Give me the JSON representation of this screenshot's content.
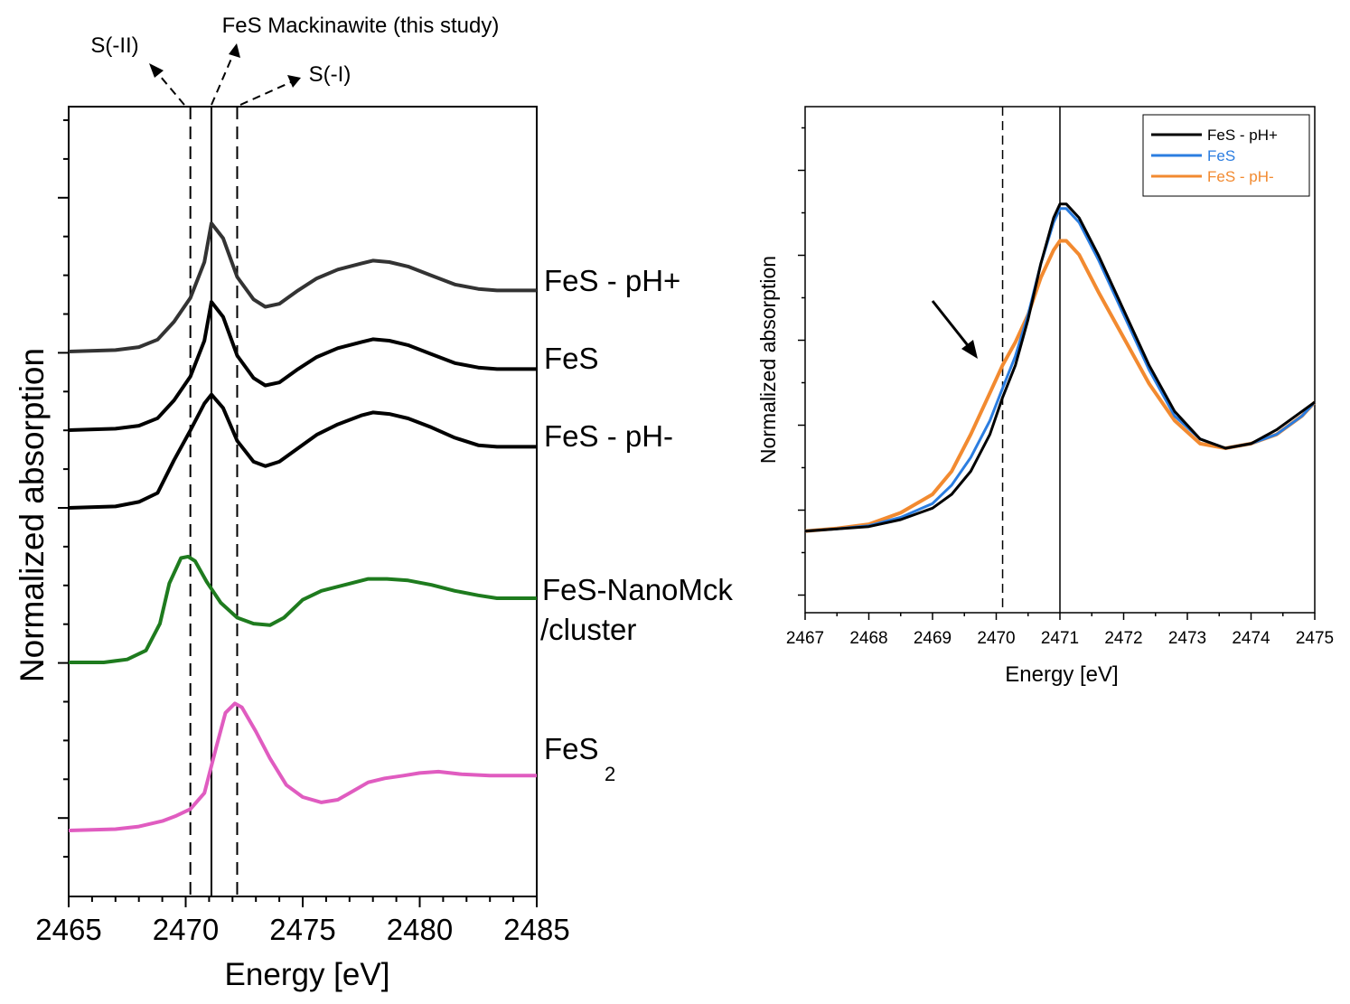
{
  "chart_data": [
    {
      "type": "line",
      "xlabel": "Energy [eV]",
      "ylabel": "Normalized absorption",
      "xlim": [
        2465,
        2485
      ],
      "xticks": [
        "2465",
        "2470",
        "2475",
        "2480",
        "2485"
      ],
      "y_tick_labels_shown": false,
      "reference_lines": [
        {
          "name": "S(-II)",
          "x": 2470.2,
          "style": "dashed"
        },
        {
          "name": "FeS Mackinawite (this study)",
          "x": 2471.1,
          "style": "solid"
        },
        {
          "name": "S(-I)",
          "x": 2472.2,
          "style": "dashed"
        }
      ],
      "series": [
        {
          "name": "FeS - pH+",
          "color": "#333333",
          "x": [
            2465,
            2467,
            2468,
            2468.8,
            2469.5,
            2470.2,
            2470.8,
            2471.1,
            2471.6,
            2472.2,
            2472.9,
            2473.4,
            2474,
            2474.8,
            2475.6,
            2476.5,
            2477.5,
            2478,
            2478.7,
            2479.5,
            2480.5,
            2481.5,
            2482.5,
            2483.3,
            2485
          ],
          "y": [
            0.1,
            0.11,
            0.13,
            0.18,
            0.3,
            0.46,
            0.7,
            0.96,
            0.86,
            0.6,
            0.45,
            0.4,
            0.42,
            0.51,
            0.59,
            0.65,
            0.69,
            0.71,
            0.7,
            0.67,
            0.61,
            0.55,
            0.52,
            0.51,
            0.51
          ]
        },
        {
          "name": "FeS",
          "color": "#000000",
          "x": [
            2465,
            2467,
            2468,
            2468.8,
            2469.5,
            2470.2,
            2470.8,
            2471.1,
            2471.6,
            2472.2,
            2472.9,
            2473.4,
            2474,
            2474.8,
            2475.6,
            2476.5,
            2477.5,
            2478,
            2478.7,
            2479.5,
            2480.5,
            2481.5,
            2482.5,
            2483.3,
            2485
          ],
          "y": [
            0.1,
            0.11,
            0.13,
            0.18,
            0.3,
            0.46,
            0.7,
            0.96,
            0.86,
            0.6,
            0.45,
            0.4,
            0.42,
            0.51,
            0.59,
            0.65,
            0.69,
            0.71,
            0.7,
            0.67,
            0.61,
            0.55,
            0.52,
            0.51,
            0.51
          ]
        },
        {
          "name": "FeS - pH-",
          "color": "#000000",
          "x": [
            2465,
            2467,
            2468,
            2468.8,
            2469.5,
            2470.2,
            2470.8,
            2471.1,
            2471.6,
            2472.2,
            2472.9,
            2473.4,
            2474,
            2474.8,
            2475.6,
            2476.5,
            2477.5,
            2478,
            2478.7,
            2479.5,
            2480.5,
            2481.5,
            2482.5,
            2483.3,
            2485
          ],
          "y": [
            0.1,
            0.11,
            0.14,
            0.2,
            0.42,
            0.62,
            0.8,
            0.86,
            0.77,
            0.55,
            0.41,
            0.38,
            0.41,
            0.5,
            0.59,
            0.66,
            0.72,
            0.74,
            0.73,
            0.7,
            0.64,
            0.57,
            0.52,
            0.51,
            0.51
          ]
        },
        {
          "name": "FeS-NanoMck /cluster",
          "color": "#1e7b1e",
          "x": [
            2465,
            2466.5,
            2467.5,
            2468.3,
            2468.9,
            2469.3,
            2469.8,
            2470.1,
            2470.4,
            2470.9,
            2471.5,
            2472.2,
            2472.9,
            2473.6,
            2474.2,
            2475,
            2475.8,
            2476.8,
            2477.8,
            2478.6,
            2479.5,
            2480.5,
            2481.5,
            2482.5,
            2483.3,
            2485
          ],
          "y": [
            0.1,
            0.1,
            0.12,
            0.18,
            0.36,
            0.63,
            0.8,
            0.81,
            0.78,
            0.64,
            0.5,
            0.4,
            0.36,
            0.35,
            0.4,
            0.52,
            0.58,
            0.62,
            0.66,
            0.66,
            0.65,
            0.62,
            0.58,
            0.55,
            0.53,
            0.53
          ]
        },
        {
          "name": "FeS2",
          "color": "#e05cc0",
          "x": [
            2465,
            2467,
            2468,
            2469,
            2469.6,
            2470.2,
            2470.8,
            2471.3,
            2471.7,
            2472.1,
            2472.4,
            2473,
            2473.6,
            2474.3,
            2475,
            2475.8,
            2476.5,
            2477.2,
            2477.8,
            2478.5,
            2479.3,
            2480,
            2480.8,
            2481.8,
            2483,
            2485
          ],
          "y": [
            0.1,
            0.11,
            0.13,
            0.17,
            0.21,
            0.26,
            0.38,
            0.72,
            0.98,
            1.05,
            1.02,
            0.84,
            0.64,
            0.44,
            0.35,
            0.31,
            0.33,
            0.4,
            0.46,
            0.49,
            0.51,
            0.53,
            0.54,
            0.52,
            0.51,
            0.51
          ]
        }
      ],
      "label_texts": {
        "fes_ph_plus": "FeS - pH+",
        "fes": "FeS",
        "fes_ph_minus": "FeS - pH-",
        "nanomck_line1": "FeS-NanoMck",
        "nanomck_line2": "/cluster",
        "fes2_base": "FeS",
        "fes2_sub": "2"
      }
    },
    {
      "type": "line",
      "xlabel": "Energy [eV]",
      "ylabel": "Normalized absorption",
      "xlim": [
        2467,
        2475
      ],
      "xticks": [
        "2467",
        "2468",
        "2469",
        "2470",
        "2471",
        "2472",
        "2473",
        "2474",
        "2475"
      ],
      "y_tick_labels_shown": false,
      "reference_lines": [
        {
          "x": 2470.1,
          "style": "dashed"
        },
        {
          "x": 2471.0,
          "style": "solid"
        }
      ],
      "annotation": "arrow pointing to the pre-edge shoulder near 2469.8 eV",
      "legend": {
        "position": "top-right"
      },
      "series": [
        {
          "name": "FeS - pH+",
          "color": "#000000",
          "x": [
            2467,
            2467.5,
            2468,
            2468.5,
            2469,
            2469.3,
            2469.6,
            2469.9,
            2470.1,
            2470.3,
            2470.5,
            2470.7,
            2470.9,
            2471,
            2471.1,
            2471.3,
            2471.6,
            2472,
            2472.4,
            2472.8,
            2473.2,
            2473.6,
            2474,
            2474.4,
            2474.8,
            2475
          ],
          "y": [
            0.12,
            0.125,
            0.13,
            0.145,
            0.17,
            0.2,
            0.25,
            0.33,
            0.41,
            0.48,
            0.58,
            0.7,
            0.8,
            0.83,
            0.83,
            0.8,
            0.72,
            0.6,
            0.48,
            0.38,
            0.32,
            0.3,
            0.31,
            0.34,
            0.38,
            0.4
          ]
        },
        {
          "name": "FeS",
          "color": "#2b7de0",
          "x": [
            2467,
            2467.5,
            2468,
            2468.5,
            2469,
            2469.3,
            2469.6,
            2469.9,
            2470.1,
            2470.3,
            2470.5,
            2470.7,
            2470.9,
            2471,
            2471.1,
            2471.3,
            2471.6,
            2472,
            2472.4,
            2472.8,
            2473.2,
            2473.6,
            2474,
            2474.4,
            2474.8,
            2475
          ],
          "y": [
            0.12,
            0.125,
            0.132,
            0.15,
            0.18,
            0.22,
            0.28,
            0.36,
            0.43,
            0.5,
            0.59,
            0.7,
            0.79,
            0.82,
            0.82,
            0.79,
            0.71,
            0.59,
            0.47,
            0.37,
            0.32,
            0.3,
            0.31,
            0.33,
            0.37,
            0.4
          ]
        },
        {
          "name": "FeS - pH-",
          "color": "#f28a30",
          "x": [
            2467,
            2467.5,
            2468,
            2468.5,
            2469,
            2469.3,
            2469.6,
            2469.9,
            2470.1,
            2470.3,
            2470.5,
            2470.7,
            2470.9,
            2471,
            2471.1,
            2471.3,
            2471.6,
            2472,
            2472.4,
            2472.8,
            2473.2,
            2473.6,
            2474,
            2474.4,
            2474.8,
            2475
          ],
          "y": [
            0.12,
            0.126,
            0.135,
            0.16,
            0.2,
            0.25,
            0.33,
            0.42,
            0.48,
            0.53,
            0.59,
            0.67,
            0.73,
            0.75,
            0.75,
            0.72,
            0.64,
            0.54,
            0.44,
            0.36,
            0.31,
            0.3,
            0.31,
            0.33,
            0.37,
            0.4
          ]
        }
      ]
    }
  ]
}
